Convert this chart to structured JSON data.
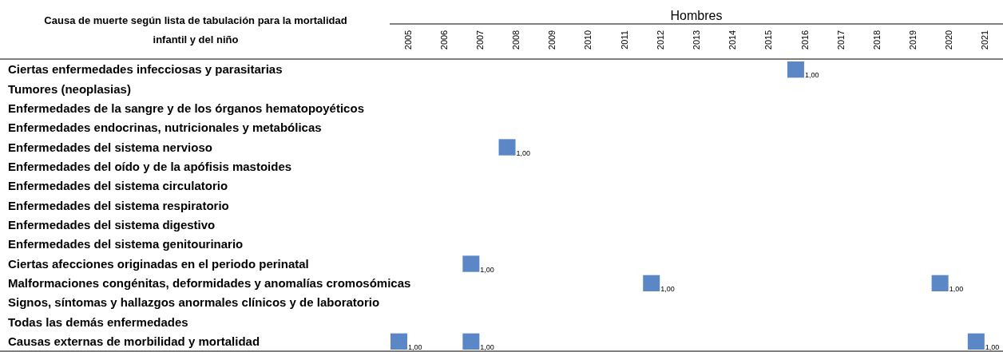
{
  "chart_data": {
    "type": "heatmap",
    "title": "Hombres",
    "ylabel": "Causa de muerte según lista de tabulación para la mortalidad infantil y del niño",
    "color": "#5b87c6",
    "categories": [
      "2005",
      "2006",
      "2007",
      "2008",
      "2009",
      "2010",
      "2011",
      "2012",
      "2013",
      "2014",
      "2015",
      "2016",
      "2017",
      "2018",
      "2019",
      "2020",
      "2021"
    ],
    "y_categories": [
      "Ciertas enfermedades infecciosas y parasitarias",
      "Tumores (neoplasias)",
      "Enfermedades de la sangre y de los órganos hematopoyéticos",
      "Enfermedades endocrinas, nutricionales y metabólicas",
      "Enfermedades del sistema nervioso",
      "Enfermedades del oído y de la apófisis mastoides",
      "Enfermedades del sistema circulatorio",
      "Enfermedades del sistema respiratorio",
      "Enfermedades del sistema digestivo",
      "Enfermedades del sistema genitourinario",
      "Ciertas afecciones originadas en el periodo perinatal",
      "Malformaciones congénitas, deformidades y anomalías cromosómicas",
      "Signos, síntomas y hallazgos anormales clínicos y de laboratorio",
      "Todas las demás enfermedades",
      "Causas externas de morbilidad y mortalidad"
    ],
    "cells": [
      [
        null,
        null,
        null,
        null,
        null,
        null,
        null,
        null,
        null,
        null,
        null,
        1,
        null,
        null,
        null,
        null,
        null
      ],
      [
        null,
        null,
        null,
        null,
        null,
        null,
        null,
        null,
        null,
        null,
        null,
        null,
        null,
        null,
        null,
        null,
        null
      ],
      [
        null,
        null,
        null,
        null,
        null,
        null,
        null,
        null,
        null,
        null,
        null,
        null,
        null,
        null,
        null,
        null,
        null
      ],
      [
        null,
        null,
        null,
        null,
        null,
        null,
        null,
        null,
        null,
        null,
        null,
        null,
        null,
        null,
        null,
        null,
        null
      ],
      [
        null,
        null,
        null,
        1,
        null,
        null,
        null,
        null,
        null,
        null,
        null,
        null,
        null,
        null,
        null,
        null,
        null
      ],
      [
        null,
        null,
        null,
        null,
        null,
        null,
        null,
        null,
        null,
        null,
        null,
        null,
        null,
        null,
        null,
        null,
        null
      ],
      [
        null,
        null,
        null,
        null,
        null,
        null,
        null,
        null,
        null,
        null,
        null,
        null,
        null,
        null,
        null,
        null,
        null
      ],
      [
        null,
        null,
        null,
        null,
        null,
        null,
        null,
        null,
        null,
        null,
        null,
        null,
        null,
        null,
        null,
        null,
        null
      ],
      [
        null,
        null,
        null,
        null,
        null,
        null,
        null,
        null,
        null,
        null,
        null,
        null,
        null,
        null,
        null,
        null,
        null
      ],
      [
        null,
        null,
        null,
        null,
        null,
        null,
        null,
        null,
        null,
        null,
        null,
        null,
        null,
        null,
        null,
        null,
        null
      ],
      [
        null,
        null,
        1,
        null,
        null,
        null,
        null,
        null,
        null,
        null,
        null,
        null,
        null,
        null,
        null,
        null,
        null
      ],
      [
        null,
        null,
        null,
        null,
        null,
        null,
        null,
        1,
        null,
        null,
        null,
        null,
        null,
        null,
        null,
        1,
        null
      ],
      [
        null,
        null,
        null,
        null,
        null,
        null,
        null,
        null,
        null,
        null,
        null,
        null,
        null,
        null,
        null,
        null,
        null
      ],
      [
        null,
        null,
        null,
        null,
        null,
        null,
        null,
        null,
        null,
        null,
        null,
        null,
        null,
        null,
        null,
        null,
        null
      ],
      [
        1,
        null,
        1,
        null,
        null,
        null,
        null,
        null,
        null,
        null,
        null,
        null,
        null,
        null,
        null,
        null,
        1
      ]
    ],
    "cell_labels": [
      [
        null,
        null,
        null,
        null,
        null,
        null,
        null,
        null,
        null,
        null,
        null,
        "1,00",
        null,
        null,
        null,
        null,
        null
      ],
      [
        null,
        null,
        null,
        null,
        null,
        null,
        null,
        null,
        null,
        null,
        null,
        null,
        null,
        null,
        null,
        null,
        null
      ],
      [
        null,
        null,
        null,
        null,
        null,
        null,
        null,
        null,
        null,
        null,
        null,
        null,
        null,
        null,
        null,
        null,
        null
      ],
      [
        null,
        null,
        null,
        null,
        null,
        null,
        null,
        null,
        null,
        null,
        null,
        null,
        null,
        null,
        null,
        null,
        null
      ],
      [
        null,
        null,
        null,
        "1,00",
        null,
        null,
        null,
        null,
        null,
        null,
        null,
        null,
        null,
        null,
        null,
        null,
        null
      ],
      [
        null,
        null,
        null,
        null,
        null,
        null,
        null,
        null,
        null,
        null,
        null,
        null,
        null,
        null,
        null,
        null,
        null
      ],
      [
        null,
        null,
        null,
        null,
        null,
        null,
        null,
        null,
        null,
        null,
        null,
        null,
        null,
        null,
        null,
        null,
        null
      ],
      [
        null,
        null,
        null,
        null,
        null,
        null,
        null,
        null,
        null,
        null,
        null,
        null,
        null,
        null,
        null,
        null,
        null
      ],
      [
        null,
        null,
        null,
        null,
        null,
        null,
        null,
        null,
        null,
        null,
        null,
        null,
        null,
        null,
        null,
        null,
        null
      ],
      [
        null,
        null,
        null,
        null,
        null,
        null,
        null,
        null,
        null,
        null,
        null,
        null,
        null,
        null,
        null,
        null,
        null
      ],
      [
        null,
        null,
        "1,00",
        null,
        null,
        null,
        null,
        null,
        null,
        null,
        null,
        null,
        null,
        null,
        null,
        null,
        null
      ],
      [
        null,
        null,
        null,
        null,
        null,
        null,
        null,
        "1,00",
        null,
        null,
        null,
        null,
        null,
        null,
        null,
        "1,00",
        null
      ],
      [
        null,
        null,
        null,
        null,
        null,
        null,
        null,
        null,
        null,
        null,
        null,
        null,
        null,
        null,
        null,
        null,
        null
      ],
      [
        null,
        null,
        null,
        null,
        null,
        null,
        null,
        null,
        null,
        null,
        null,
        null,
        null,
        null,
        null,
        null,
        null
      ],
      [
        "1,00",
        null,
        "1,00",
        null,
        null,
        null,
        null,
        null,
        null,
        null,
        null,
        null,
        null,
        null,
        null,
        null,
        "1,00"
      ]
    ]
  }
}
